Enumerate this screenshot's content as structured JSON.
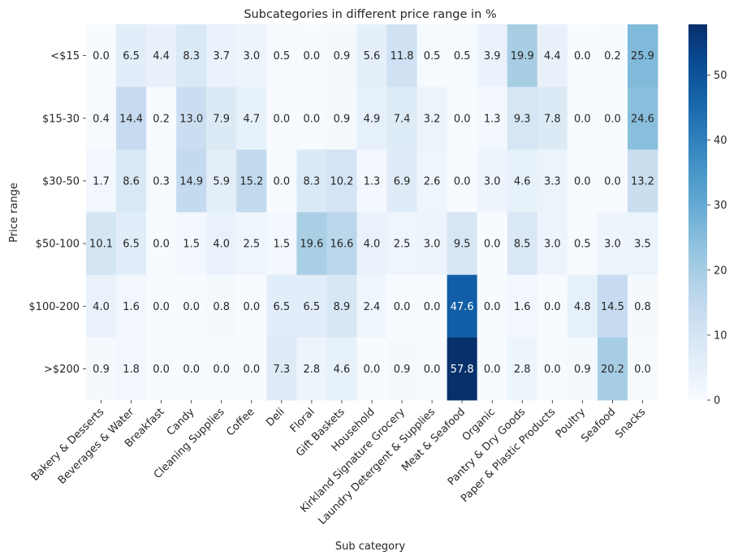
{
  "chart_data": {
    "type": "heatmap",
    "title": "Subcategories in different price range in %",
    "xlabel": "Sub category",
    "ylabel": "Price range",
    "rows": [
      "<$15",
      "$15-30",
      "$30-50",
      "$50-100",
      "$100-200",
      ">$200"
    ],
    "columns": [
      "Bakery & Desserts",
      "Beverages & Water",
      "Breakfast",
      "Candy",
      "Cleaning Supplies",
      "Coffee",
      "Deli",
      "Floral",
      "Gift Baskets",
      "Household",
      "Kirkland Signature Grocery",
      "Laundry Detergent & Supplies",
      "Meat & Seafood",
      "Organic",
      "Pantry & Dry Goods",
      "Paper & Plastic Products",
      "Poultry",
      "Seafood",
      "Snacks"
    ],
    "values": [
      [
        0.0,
        6.5,
        4.4,
        8.3,
        3.7,
        3.0,
        0.5,
        0.0,
        0.9,
        5.6,
        11.8,
        0.5,
        0.5,
        3.9,
        19.9,
        4.4,
        0.0,
        0.2,
        25.9
      ],
      [
        0.4,
        14.4,
        0.2,
        13.0,
        7.9,
        4.7,
        0.0,
        0.0,
        0.9,
        4.9,
        7.4,
        3.2,
        0.0,
        1.3,
        9.3,
        7.8,
        0.0,
        0.0,
        24.6
      ],
      [
        1.7,
        8.6,
        0.3,
        14.9,
        5.9,
        15.2,
        0.0,
        8.3,
        10.2,
        1.3,
        6.9,
        2.6,
        0.0,
        3.0,
        4.6,
        3.3,
        0.0,
        0.0,
        13.2
      ],
      [
        10.1,
        6.5,
        0.0,
        1.5,
        4.0,
        2.5,
        1.5,
        19.6,
        16.6,
        4.0,
        2.5,
        3.0,
        9.5,
        0.0,
        8.5,
        3.0,
        0.5,
        3.0,
        3.5
      ],
      [
        4.0,
        1.6,
        0.0,
        0.0,
        0.8,
        0.0,
        6.5,
        6.5,
        8.9,
        2.4,
        0.0,
        0.0,
        47.6,
        0.0,
        1.6,
        0.0,
        4.8,
        14.5,
        0.8
      ],
      [
        0.9,
        1.8,
        0.0,
        0.0,
        0.0,
        0.0,
        7.3,
        2.8,
        4.6,
        0.0,
        0.9,
        0.0,
        57.8,
        0.0,
        2.8,
        0.0,
        0.9,
        20.2,
        0.0
      ]
    ],
    "value_format": "0.1f",
    "colormap": "Blues",
    "color_range": [
      0,
      57.8
    ],
    "colorbar_ticks": [
      0,
      10,
      20,
      30,
      40,
      50
    ],
    "grid": false
  }
}
